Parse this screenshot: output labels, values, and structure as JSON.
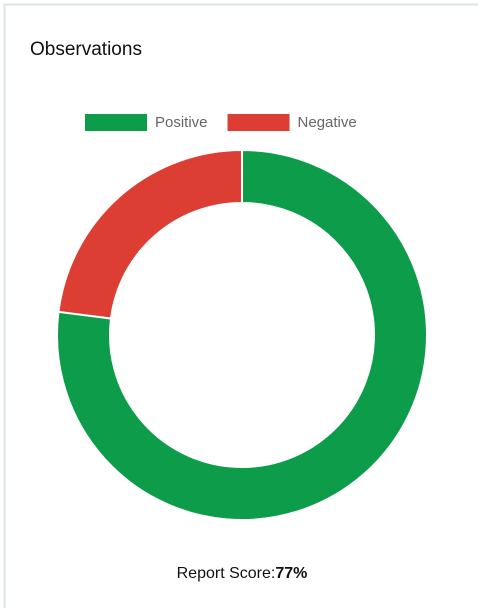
{
  "header": {
    "title": "Observations"
  },
  "chart_data": {
    "type": "doughnut",
    "categories": [
      "Positive",
      "Negative"
    ],
    "values": [
      77,
      23
    ],
    "colors": [
      "#0c9c4a",
      "#dc3e33"
    ],
    "legend": "top"
  },
  "footer": {
    "label": "Report Score:",
    "score": "77%"
  }
}
